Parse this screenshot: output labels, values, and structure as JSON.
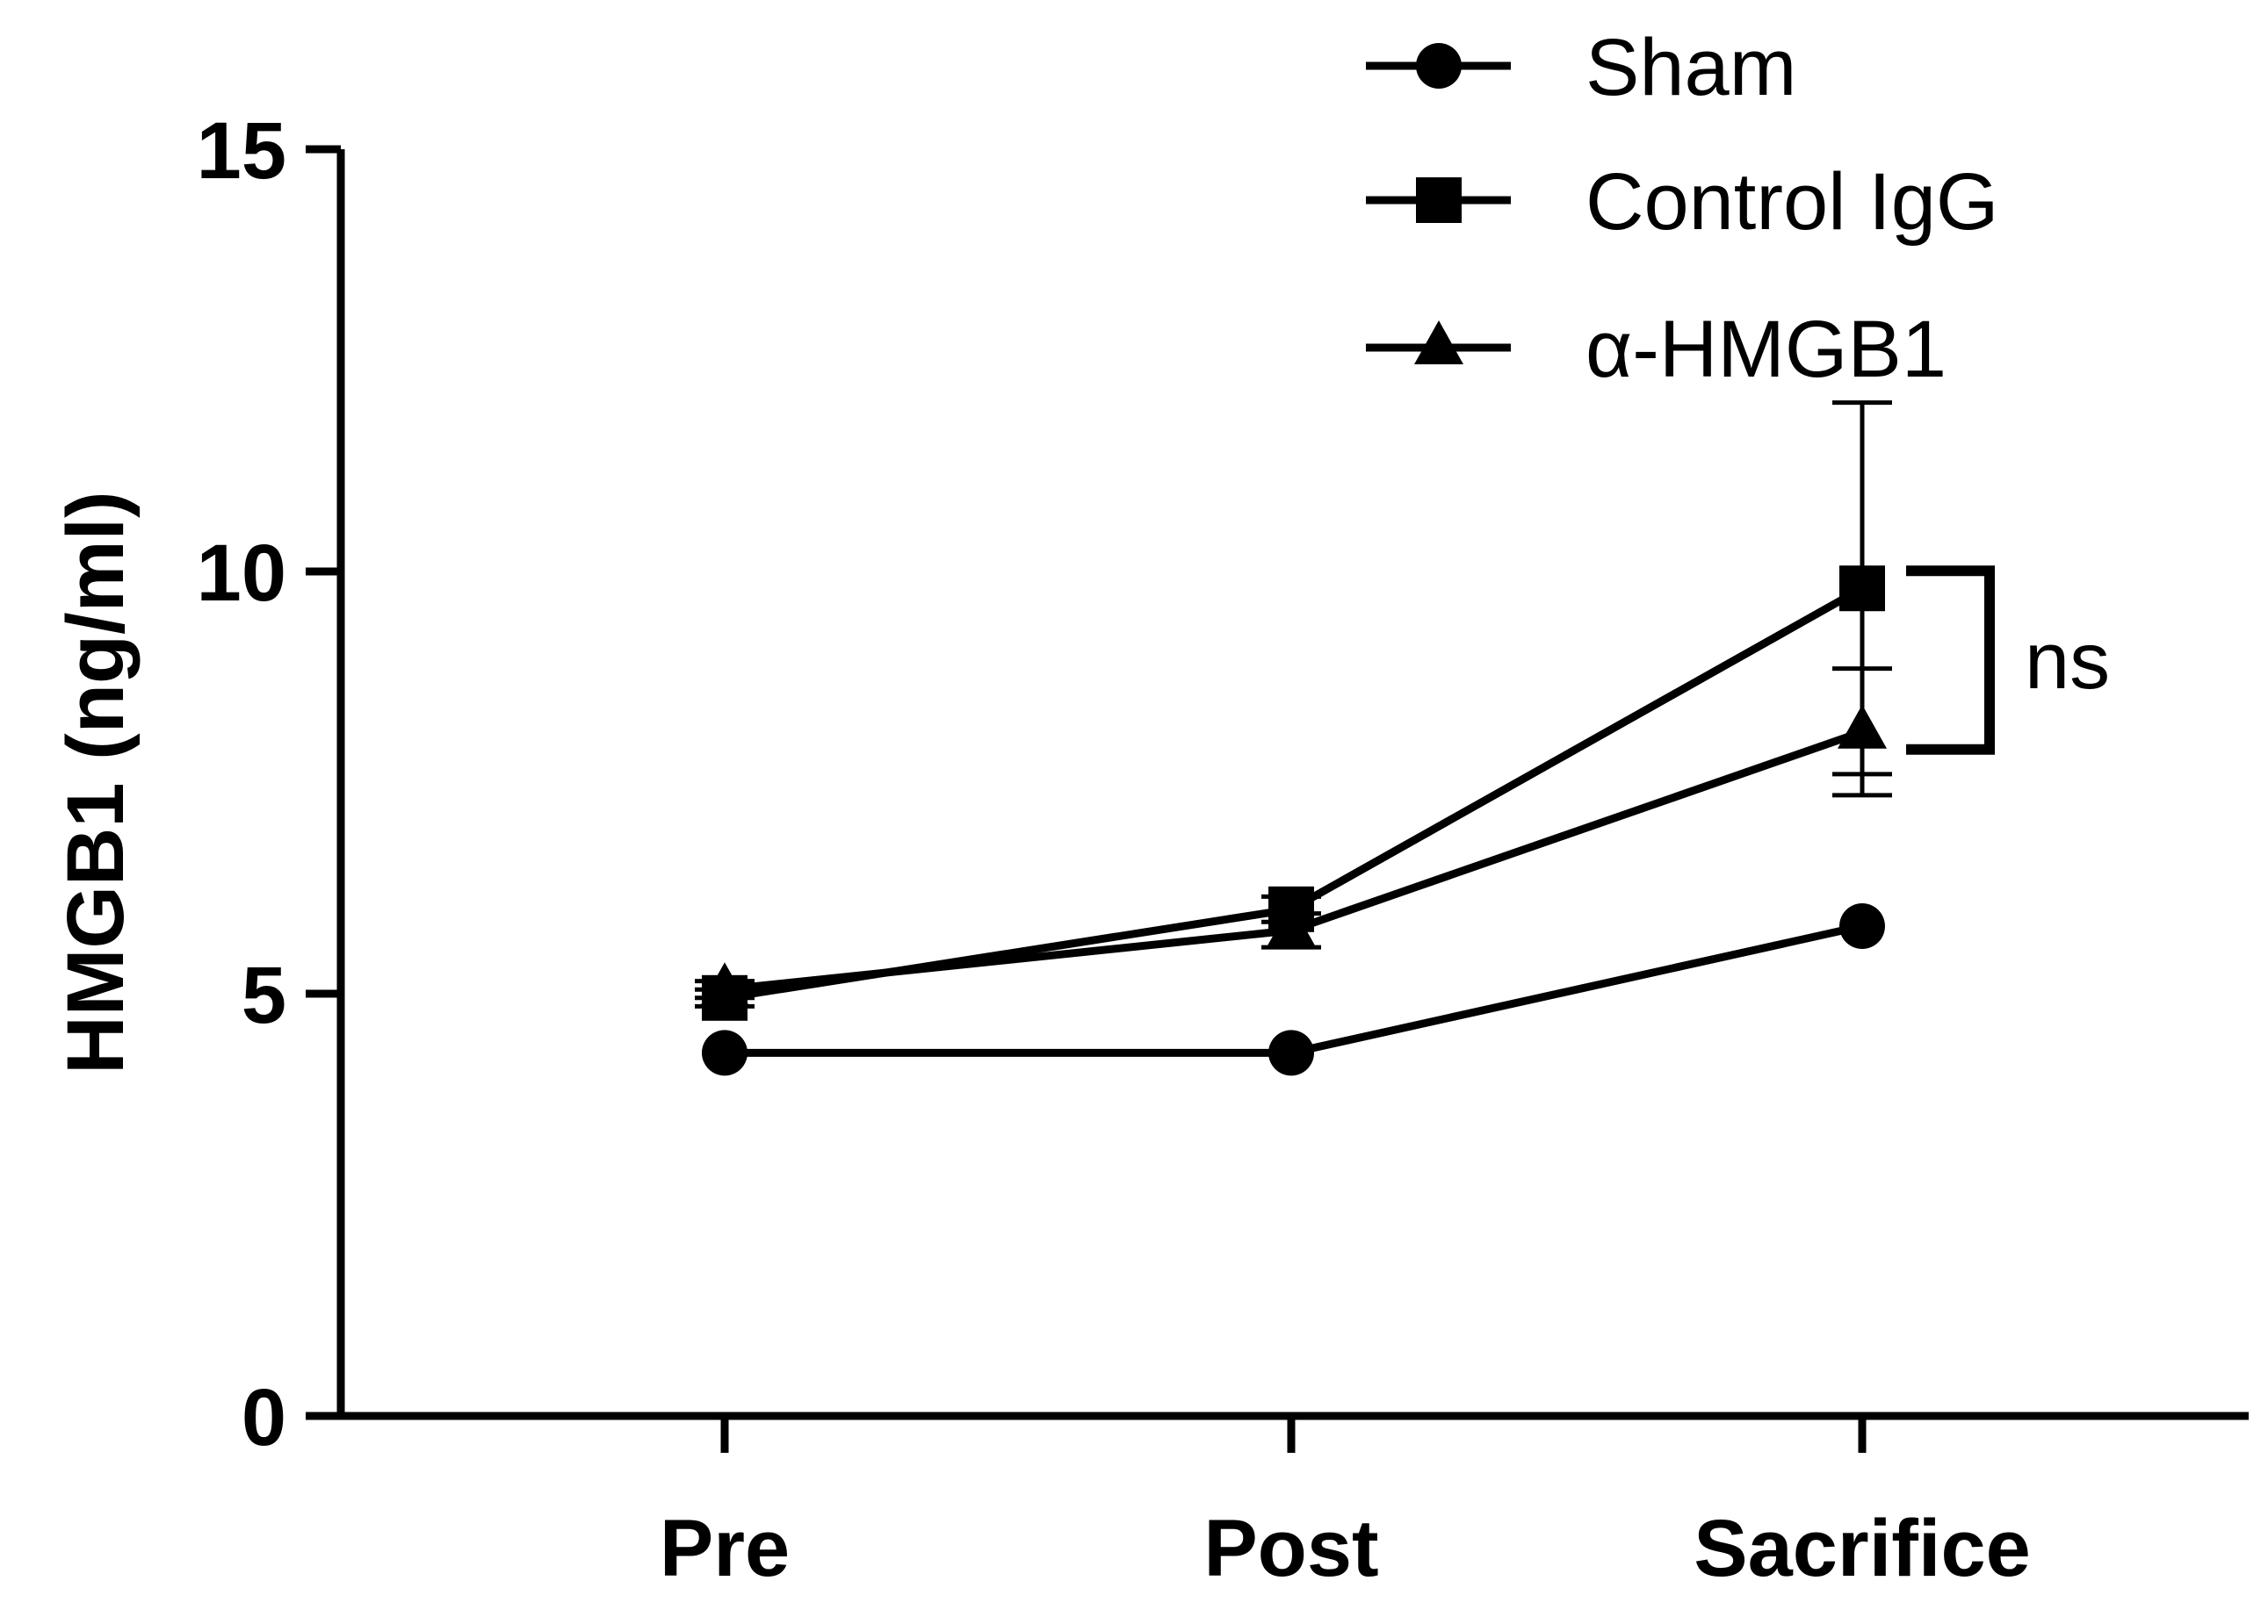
{
  "chart_data": {
    "type": "line",
    "title": "",
    "xlabel": "",
    "ylabel": "HMGB1 (ng/ml)",
    "categories": [
      "Pre",
      "Post",
      "Sacrifice"
    ],
    "ylim": [
      0,
      15
    ],
    "yticks": [
      0,
      5,
      10,
      15
    ],
    "grid": false,
    "legend_position": "top-right",
    "series": [
      {
        "name": "Sham",
        "marker": "circle",
        "values": [
          4.3,
          4.3,
          5.8
        ],
        "error": [
          0,
          0,
          0
        ]
      },
      {
        "name": "Control IgG",
        "marker": "square",
        "values": [
          4.95,
          6.0,
          9.8
        ],
        "error": [
          0.1,
          0.15,
          2.2
        ]
      },
      {
        "name": "α-HMGB1",
        "marker": "triangle",
        "values": [
          5.05,
          5.75,
          8.1
        ],
        "error": [
          0.1,
          0.2,
          0.75
        ]
      }
    ],
    "annotations": [
      {
        "text": "ns",
        "type": "bracket",
        "category": "Sacrifice",
        "from_series": "Control IgG",
        "to_series": "α-HMGB1"
      }
    ]
  }
}
